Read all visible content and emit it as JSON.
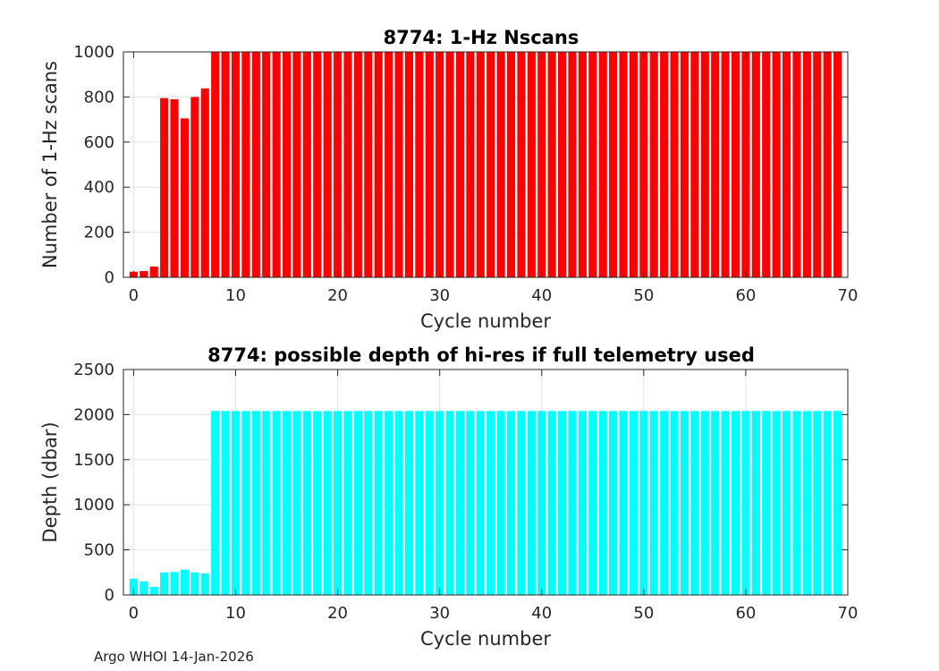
{
  "footer": "Argo WHOI 14-Jan-2026",
  "chart_data": [
    {
      "type": "bar",
      "title": "8774: 1-Hz Nscans",
      "xlabel": "Cycle number",
      "ylabel": "Number of 1-Hz scans",
      "xlim": [
        -1,
        70
      ],
      "ylim": [
        0,
        1000
      ],
      "xticks": [
        0,
        10,
        20,
        30,
        40,
        50,
        60,
        70
      ],
      "yticks": [
        0,
        200,
        400,
        600,
        800,
        1000
      ],
      "grid": true,
      "color": "#ff0000",
      "x": [
        0,
        1,
        2,
        3,
        4,
        5,
        6,
        7,
        8,
        9,
        10,
        11,
        12,
        13,
        14,
        15,
        16,
        17,
        18,
        19,
        20,
        21,
        22,
        23,
        24,
        25,
        26,
        27,
        28,
        29,
        30,
        31,
        32,
        33,
        34,
        35,
        36,
        37,
        38,
        39,
        40,
        41,
        42,
        43,
        44,
        45,
        46,
        47,
        48,
        49,
        50,
        51,
        52,
        53,
        54,
        55,
        56,
        57,
        58,
        59,
        60,
        61,
        62,
        63,
        64,
        65,
        66,
        67,
        68,
        69
      ],
      "values": [
        25,
        28,
        48,
        795,
        790,
        705,
        800,
        838,
        1000,
        1000,
        1000,
        1000,
        1000,
        1000,
        1000,
        1000,
        1000,
        1000,
        1000,
        1000,
        1000,
        1000,
        1000,
        1000,
        1000,
        1000,
        1000,
        1000,
        1000,
        1000,
        1000,
        1000,
        1000,
        1000,
        1000,
        1000,
        1000,
        1000,
        1000,
        1000,
        1000,
        1000,
        1000,
        1000,
        1000,
        1000,
        1000,
        1000,
        1000,
        1000,
        1000,
        1000,
        1000,
        1000,
        1000,
        1000,
        1000,
        1000,
        1000,
        1000,
        1000,
        1000,
        1000,
        1000,
        1000,
        1000,
        1000,
        1000,
        1000,
        1000
      ]
    },
    {
      "type": "bar",
      "title": "8774: possible depth of hi-res if full telemetry used",
      "xlabel": "Cycle number",
      "ylabel": "Depth (dbar)",
      "xlim": [
        -1,
        70
      ],
      "ylim": [
        0,
        2500
      ],
      "xticks": [
        0,
        10,
        20,
        30,
        40,
        50,
        60,
        70
      ],
      "yticks": [
        0,
        500,
        1000,
        1500,
        2000,
        2500
      ],
      "grid": true,
      "color": "#00ffff",
      "x": [
        0,
        1,
        2,
        3,
        4,
        5,
        6,
        7,
        8,
        9,
        10,
        11,
        12,
        13,
        14,
        15,
        16,
        17,
        18,
        19,
        20,
        21,
        22,
        23,
        24,
        25,
        26,
        27,
        28,
        29,
        30,
        31,
        32,
        33,
        34,
        35,
        36,
        37,
        38,
        39,
        40,
        41,
        42,
        43,
        44,
        45,
        46,
        47,
        48,
        49,
        50,
        51,
        52,
        53,
        54,
        55,
        56,
        57,
        58,
        59,
        60,
        61,
        62,
        63,
        64,
        65,
        66,
        67,
        68,
        69
      ],
      "values": [
        180,
        150,
        90,
        250,
        255,
        280,
        250,
        240,
        2040,
        2040,
        2040,
        2040,
        2040,
        2040,
        2040,
        2040,
        2040,
        2040,
        2040,
        2040,
        2040,
        2040,
        2040,
        2040,
        2040,
        2040,
        2040,
        2040,
        2040,
        2040,
        2040,
        2040,
        2040,
        2040,
        2040,
        2040,
        2040,
        2040,
        2040,
        2040,
        2040,
        2040,
        2040,
        2040,
        2040,
        2040,
        2040,
        2040,
        2040,
        2040,
        2040,
        2040,
        2040,
        2040,
        2040,
        2040,
        2040,
        2040,
        2040,
        2040,
        2040,
        2040,
        2040,
        2040,
        2040,
        2040,
        2040,
        2040,
        2040,
        2040
      ]
    }
  ]
}
